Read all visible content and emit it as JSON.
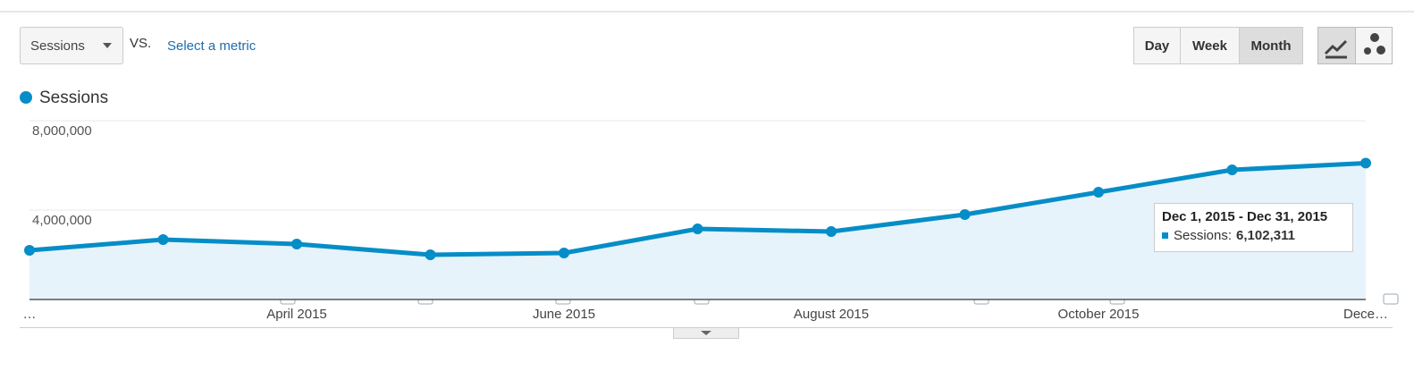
{
  "controls": {
    "metric": "Sessions",
    "vs": "VS.",
    "select": "Select a metric",
    "periods": [
      "Day",
      "Week",
      "Month"
    ],
    "active_period": "Month"
  },
  "chart_data": {
    "type": "line",
    "categories": [
      "…",
      null,
      "April 2015",
      null,
      "June 2015",
      null,
      "August 2015",
      null,
      "October 2015",
      null,
      "Dece…"
    ],
    "series": [
      {
        "name": "Sessions",
        "color": "#058dc7",
        "values": [
          2200000,
          2680000,
          2480000,
          2000000,
          2080000,
          3160000,
          3040000,
          3800000,
          4800000,
          5800000,
          6102311
        ]
      }
    ],
    "ylim": [
      0,
      8000000
    ],
    "yticks": [
      {
        "value": 4000000,
        "label": "4,000,000"
      },
      {
        "value": 8000000,
        "label": "8,000,000"
      }
    ],
    "grid": true,
    "tooltip": {
      "title": "Dec 1, 2015 - Dec 31, 2015",
      "label": "Sessions:",
      "value": "6,102,311"
    }
  }
}
